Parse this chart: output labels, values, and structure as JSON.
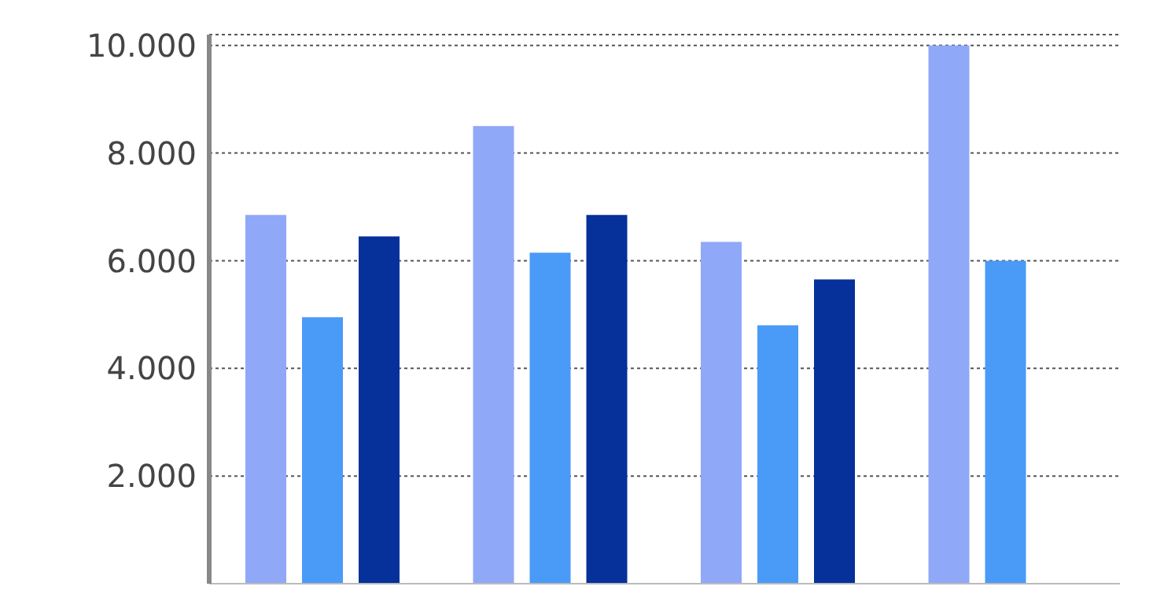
{
  "chart_data": {
    "type": "bar",
    "categories": [
      null,
      null,
      null,
      null
    ],
    "series": [
      {
        "color": "#8fa8f8",
        "values": [
          6850,
          8500,
          6350,
          10000
        ]
      },
      {
        "color": "#4a9af8",
        "values": [
          4950,
          6150,
          4800,
          6000
        ]
      },
      {
        "color": "#06309a",
        "values": [
          6450,
          6850,
          5650,
          null
        ]
      }
    ],
    "ylim": [
      0,
      10200
    ],
    "yticks": [
      {
        "value": 2000,
        "label": "2.000"
      },
      {
        "value": 4000,
        "label": "4.000"
      },
      {
        "value": 6000,
        "label": "6.000"
      },
      {
        "value": 8000,
        "label": "8.000"
      },
      {
        "value": 10000,
        "label": "10.000"
      }
    ],
    "grid": "y"
  }
}
